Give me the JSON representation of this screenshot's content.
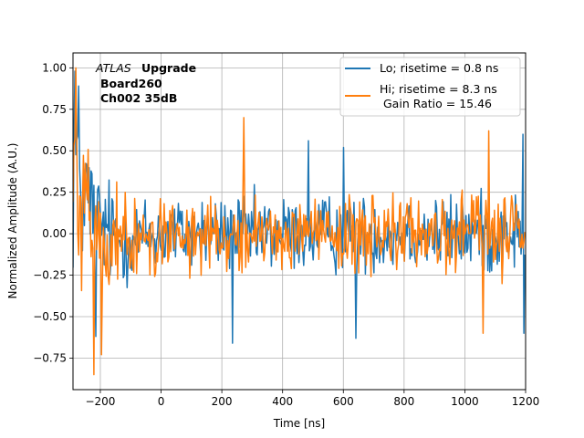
{
  "chart_data": {
    "type": "line",
    "title": "",
    "xlabel": "Time [ns]",
    "ylabel": "Normalized Amplitude (A.U.)",
    "xlim": [
      -290,
      1200
    ],
    "ylim": [
      -0.94,
      1.09
    ],
    "grid": true,
    "x_ticks": [
      {
        "value": -200,
        "label": "−200"
      },
      {
        "value": 0,
        "label": "0"
      },
      {
        "value": 200,
        "label": "200"
      },
      {
        "value": 400,
        "label": "400"
      },
      {
        "value": 600,
        "label": "600"
      },
      {
        "value": 800,
        "label": "800"
      },
      {
        "value": 1000,
        "label": "1000"
      },
      {
        "value": 1200,
        "label": "1200"
      }
    ],
    "y_ticks": [
      {
        "value": -0.75,
        "label": "−0.75"
      },
      {
        "value": -0.5,
        "label": "−0.50"
      },
      {
        "value": -0.25,
        "label": "−0.25"
      },
      {
        "value": 0.0,
        "label": "0.00"
      },
      {
        "value": 0.25,
        "label": "0.25"
      },
      {
        "value": 0.5,
        "label": "0.50"
      },
      {
        "value": 0.75,
        "label": "0.75"
      },
      {
        "value": 1.0,
        "label": "1.00"
      }
    ],
    "annotations": {
      "atlas": "ATLAS",
      "upgrade": "Upgrade",
      "board": "Board260",
      "channel": "Ch002 35dB"
    },
    "legend_position": "top-right",
    "series": [
      {
        "name": "Lo; risetime = 0.8 ns",
        "color": "#1f77b4",
        "step_ns": 3.125,
        "envelope": {
          "t": [
            -290,
            -270,
            -240,
            -200,
            -150,
            -100,
            0,
            200,
            400,
            600,
            800,
            1000,
            1200
          ],
          "amp": [
            1.0,
            0.8,
            0.55,
            0.45,
            0.38,
            0.33,
            0.3,
            0.3,
            0.3,
            0.3,
            0.29,
            0.3,
            0.32
          ],
          "offset": [
            0.5,
            0.35,
            0.18,
            0.05,
            -0.02,
            -0.03,
            0.0,
            0.0,
            0.0,
            0.0,
            0.0,
            0.0,
            0.0
          ]
        },
        "peaks": [
          {
            "t": -285,
            "v": 0.98
          },
          {
            "t": -215,
            "v": -0.62
          },
          {
            "t": 235,
            "v": -0.66
          },
          {
            "t": 485,
            "v": 0.56
          },
          {
            "t": 600,
            "v": 0.52
          },
          {
            "t": 640,
            "v": -0.63
          },
          {
            "t": 1190,
            "v": 0.6
          },
          {
            "t": 1195,
            "v": -0.6
          }
        ]
      },
      {
        "name": "Hi; risetime = 8.3 ns",
        "color": "#ff7f0e",
        "step_ns": 3.125,
        "envelope": {
          "t": [
            -290,
            -270,
            -240,
            -200,
            -150,
            -100,
            0,
            200,
            400,
            600,
            800,
            1000,
            1200
          ],
          "amp": [
            0.95,
            0.75,
            0.5,
            0.45,
            0.38,
            0.33,
            0.28,
            0.28,
            0.28,
            0.27,
            0.27,
            0.28,
            0.3
          ],
          "offset": [
            0.45,
            0.3,
            0.1,
            -0.08,
            -0.1,
            -0.05,
            0.0,
            0.0,
            0.0,
            0.0,
            0.0,
            0.0,
            0.0
          ]
        },
        "peaks": [
          {
            "t": -282,
            "v": 1.0
          },
          {
            "t": -220,
            "v": -0.85
          },
          {
            "t": -195,
            "v": -0.73
          },
          {
            "t": 272,
            "v": 0.7
          },
          {
            "t": 1080,
            "v": 0.62
          },
          {
            "t": 1060,
            "v": -0.6
          }
        ]
      }
    ],
    "legend_extra": "Gain Ratio = 15.46"
  }
}
